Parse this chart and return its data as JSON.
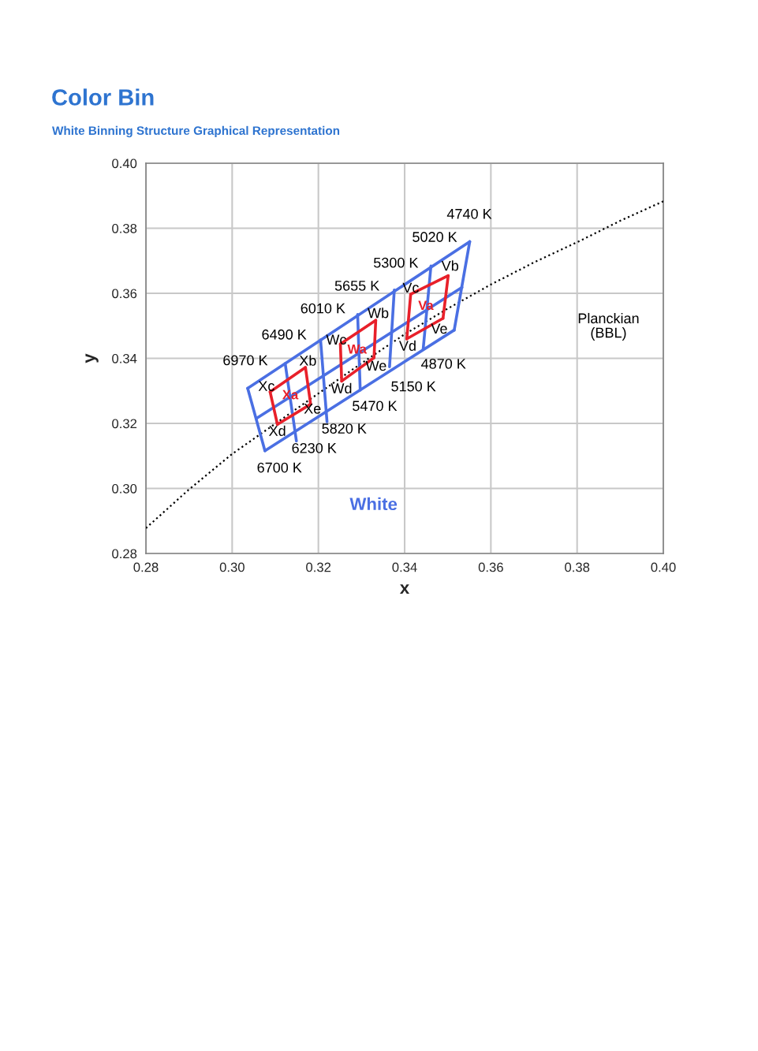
{
  "chart_data": {
    "type": "line",
    "title": "Color Bin",
    "subtitle": "White Binning Structure Graphical Representation",
    "xlabel": "x",
    "ylabel": "y",
    "xlim": [
      0.28,
      0.4
    ],
    "ylim": [
      0.28,
      0.4
    ],
    "xticks": [
      0.28,
      {
        "value": 0.3,
        "label": "0.30"
      },
      0.32,
      0.34,
      0.36,
      0.38,
      {
        "value": 0.4,
        "label": "0.40"
      }
    ],
    "yticks": [
      0.28,
      {
        "value": 0.3,
        "label": "0.30"
      },
      0.32,
      0.34,
      0.36,
      0.38,
      {
        "value": 0.4,
        "label": "0.40"
      }
    ],
    "grid": true,
    "series": [
      {
        "color": "#000000",
        "line_style": "dotted",
        "x": [
          0.28,
          0.29,
          0.3,
          0.31,
          0.32,
          0.33,
          0.34,
          0.35,
          0.36,
          0.37,
          0.38,
          0.39,
          0.4
        ],
        "values": [
          0.2878,
          0.2997,
          0.3106,
          0.3199,
          0.3292,
          0.3385,
          0.3474,
          0.3553,
          0.3627,
          0.3695,
          0.3757,
          0.3823,
          0.3883
        ]
      },
      {
        "color": "#4a6fe3",
        "x": [
          0.3036,
          0.3551
        ],
        "values": [
          0.3308,
          0.3759
        ]
      },
      {
        "color": "#4a6fe3",
        "x": [
          0.3076,
          0.3515
        ],
        "values": [
          0.3116,
          0.3487
        ]
      },
      {
        "color": "#4a6fe3",
        "x": [
          0.3036,
          0.3076
        ],
        "values": [
          0.3308,
          0.3116
        ]
      },
      {
        "color": "#4a6fe3",
        "x": [
          0.3551,
          0.3515
        ],
        "values": [
          0.3759,
          0.3487
        ]
      },
      {
        "color": "#4a6fe3",
        "x": [
          0.3056,
          0.3533
        ],
        "values": [
          0.3215,
          0.3618
        ]
      },
      {
        "color": "#4a6fe3",
        "x": [
          0.3123,
          0.3149
        ],
        "values": [
          0.3384,
          0.3146
        ]
      },
      {
        "color": "#4a6fe3",
        "x": [
          0.3205,
          0.322
        ],
        "values": [
          0.3457,
          0.3205
        ]
      },
      {
        "color": "#4a6fe3",
        "x": [
          0.3291,
          0.3297
        ],
        "values": [
          0.3535,
          0.3302
        ]
      },
      {
        "color": "#4a6fe3",
        "x": [
          0.3376,
          0.3365
        ],
        "values": [
          0.361,
          0.3374
        ]
      },
      {
        "color": "#4a6fe3",
        "x": [
          0.3461,
          0.3443
        ],
        "values": [
          0.3684,
          0.3428
        ]
      },
      {
        "color": "#e8202a",
        "x": [
          0.3088,
          0.317
        ],
        "values": [
          0.3297,
          0.3372
        ]
      },
      {
        "color": "#e8202a",
        "x": [
          0.3105,
          0.3182
        ],
        "values": [
          0.3197,
          0.3259
        ]
      },
      {
        "color": "#e8202a",
        "x": [
          0.3088,
          0.3105
        ],
        "values": [
          0.3297,
          0.3197
        ]
      },
      {
        "color": "#e8202a",
        "x": [
          0.317,
          0.3182
        ],
        "values": [
          0.3372,
          0.3259
        ]
      },
      {
        "color": "#e8202a",
        "x": [
          0.3251,
          0.3333
        ],
        "values": [
          0.3444,
          0.3517
        ]
      },
      {
        "color": "#e8202a",
        "x": [
          0.3254,
          0.3329
        ],
        "values": [
          0.333,
          0.3402
        ]
      },
      {
        "color": "#e8202a",
        "x": [
          0.3251,
          0.3254
        ],
        "values": [
          0.3444,
          0.333
        ]
      },
      {
        "color": "#e8202a",
        "x": [
          0.3333,
          0.3329
        ],
        "values": [
          0.3517,
          0.3402
        ]
      },
      {
        "color": "#e8202a",
        "x": [
          0.3414,
          0.3501
        ],
        "values": [
          0.3597,
          0.3654
        ]
      },
      {
        "color": "#e8202a",
        "x": [
          0.3405,
          0.3489
        ],
        "values": [
          0.346,
          0.3523
        ]
      },
      {
        "color": "#e8202a",
        "x": [
          0.3414,
          0.3405
        ],
        "values": [
          0.3597,
          0.346
        ]
      },
      {
        "color": "#e8202a",
        "x": [
          0.3501,
          0.3489
        ],
        "values": [
          0.3654,
          0.3523
        ]
      }
    ],
    "annotations": [
      "4740 K",
      "5020 K",
      "5300 K",
      "5655 K",
      "6010 K",
      "6490 K",
      "6970 K",
      "4870 K",
      "5150 K",
      "5470 K",
      "5820 K",
      "6230 K",
      "6700 K",
      "Xc",
      "Xb",
      "Xd",
      "Xe",
      "Wc",
      "Wb",
      "Wd",
      "We",
      "Vc",
      "Vb",
      "Vd",
      "Ve",
      "Xa",
      "Wa",
      "Va",
      "Planckian\n(BBL)",
      "White"
    ]
  }
}
